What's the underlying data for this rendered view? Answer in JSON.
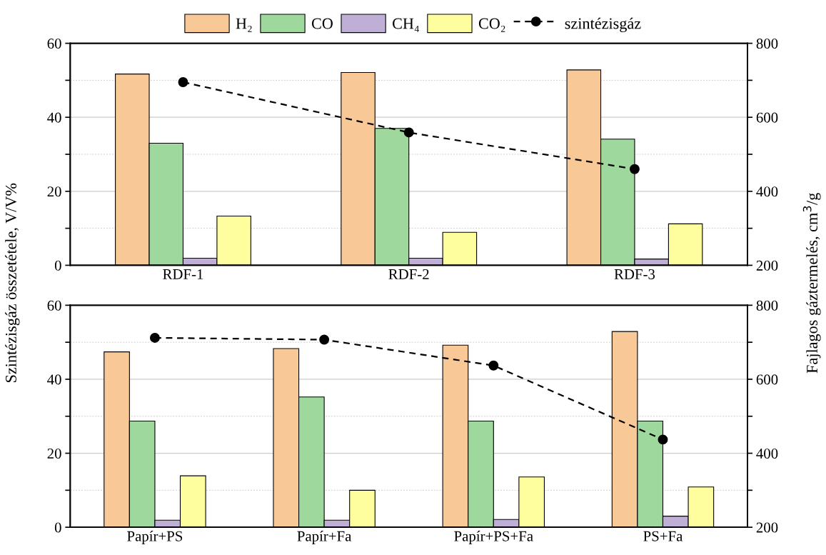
{
  "chart_data": [
    {
      "type": "bar",
      "ylabel": "Szintézisgáz összetétele, V/V%",
      "y2label": "Fajlagos gáztermelés, cm$^{3}$/g",
      "legend": "top",
      "grid": "y",
      "categories": [
        "RDF-1",
        "RDF-2",
        "RDF-3"
      ],
      "ylim": [
        0,
        60
      ],
      "yticks": [
        0,
        {
          "value": 10,
          "label": null
        },
        20,
        {
          "value": 30,
          "label": null
        },
        40,
        {
          "value": 50,
          "label": null
        },
        60
      ],
      "y2lim": [
        200,
        800
      ],
      "y2ticks": [
        200,
        {
          "value": 300,
          "label": null
        },
        400,
        {
          "value": 500,
          "label": null
        },
        600,
        {
          "value": 700,
          "label": null
        },
        800
      ],
      "series": [
        {
          "name": "H₂",
          "color": "#f9c897",
          "values": [
            51.7,
            52.1,
            52.8
          ]
        },
        {
          "name": "CO",
          "color": "#9ed89c",
          "values": [
            33.0,
            37.0,
            34.1
          ]
        },
        {
          "name": "CH₄",
          "color": "#bfaed6",
          "values": [
            1.9,
            1.9,
            1.7
          ]
        },
        {
          "name": "CO₂",
          "color": "#fefe9e",
          "values": [
            13.3,
            8.9,
            11.2
          ]
        },
        {
          "name": "szintézisgáz",
          "type": "line",
          "axis": "y2",
          "color": "#000000",
          "marker": "circle",
          "line_style": "dashed",
          "values": [
            695,
            559,
            460
          ]
        }
      ]
    },
    {
      "type": "bar",
      "grid": "y",
      "categories": [
        "Papír+PS",
        "Papír+Fa",
        "Papír+PS+Fa",
        "PS+Fa"
      ],
      "ylim": [
        0,
        60
      ],
      "yticks": [
        0,
        {
          "value": 10,
          "label": null
        },
        20,
        {
          "value": 30,
          "label": null
        },
        40,
        {
          "value": 50,
          "label": null
        },
        60
      ],
      "y2lim": [
        200,
        800
      ],
      "y2ticks": [
        200,
        {
          "value": 300,
          "label": null
        },
        400,
        {
          "value": 500,
          "label": null
        },
        600,
        {
          "value": 700,
          "label": null
        },
        800
      ],
      "series": [
        {
          "color": "#f9c897",
          "values": [
            47.4,
            48.3,
            49.2,
            52.9
          ]
        },
        {
          "color": "#9ed89c",
          "values": [
            28.7,
            35.2,
            28.7,
            28.7
          ]
        },
        {
          "color": "#bfaed6",
          "values": [
            1.9,
            1.9,
            2.1,
            3.0
          ]
        },
        {
          "color": "#fefe9e",
          "values": [
            13.9,
            10.0,
            13.6,
            10.9
          ]
        },
        {
          "type": "line",
          "axis": "y2",
          "color": "#000000",
          "marker": "circle",
          "line_style": "dashed",
          "values": [
            712,
            707,
            637,
            437
          ]
        }
      ]
    }
  ]
}
